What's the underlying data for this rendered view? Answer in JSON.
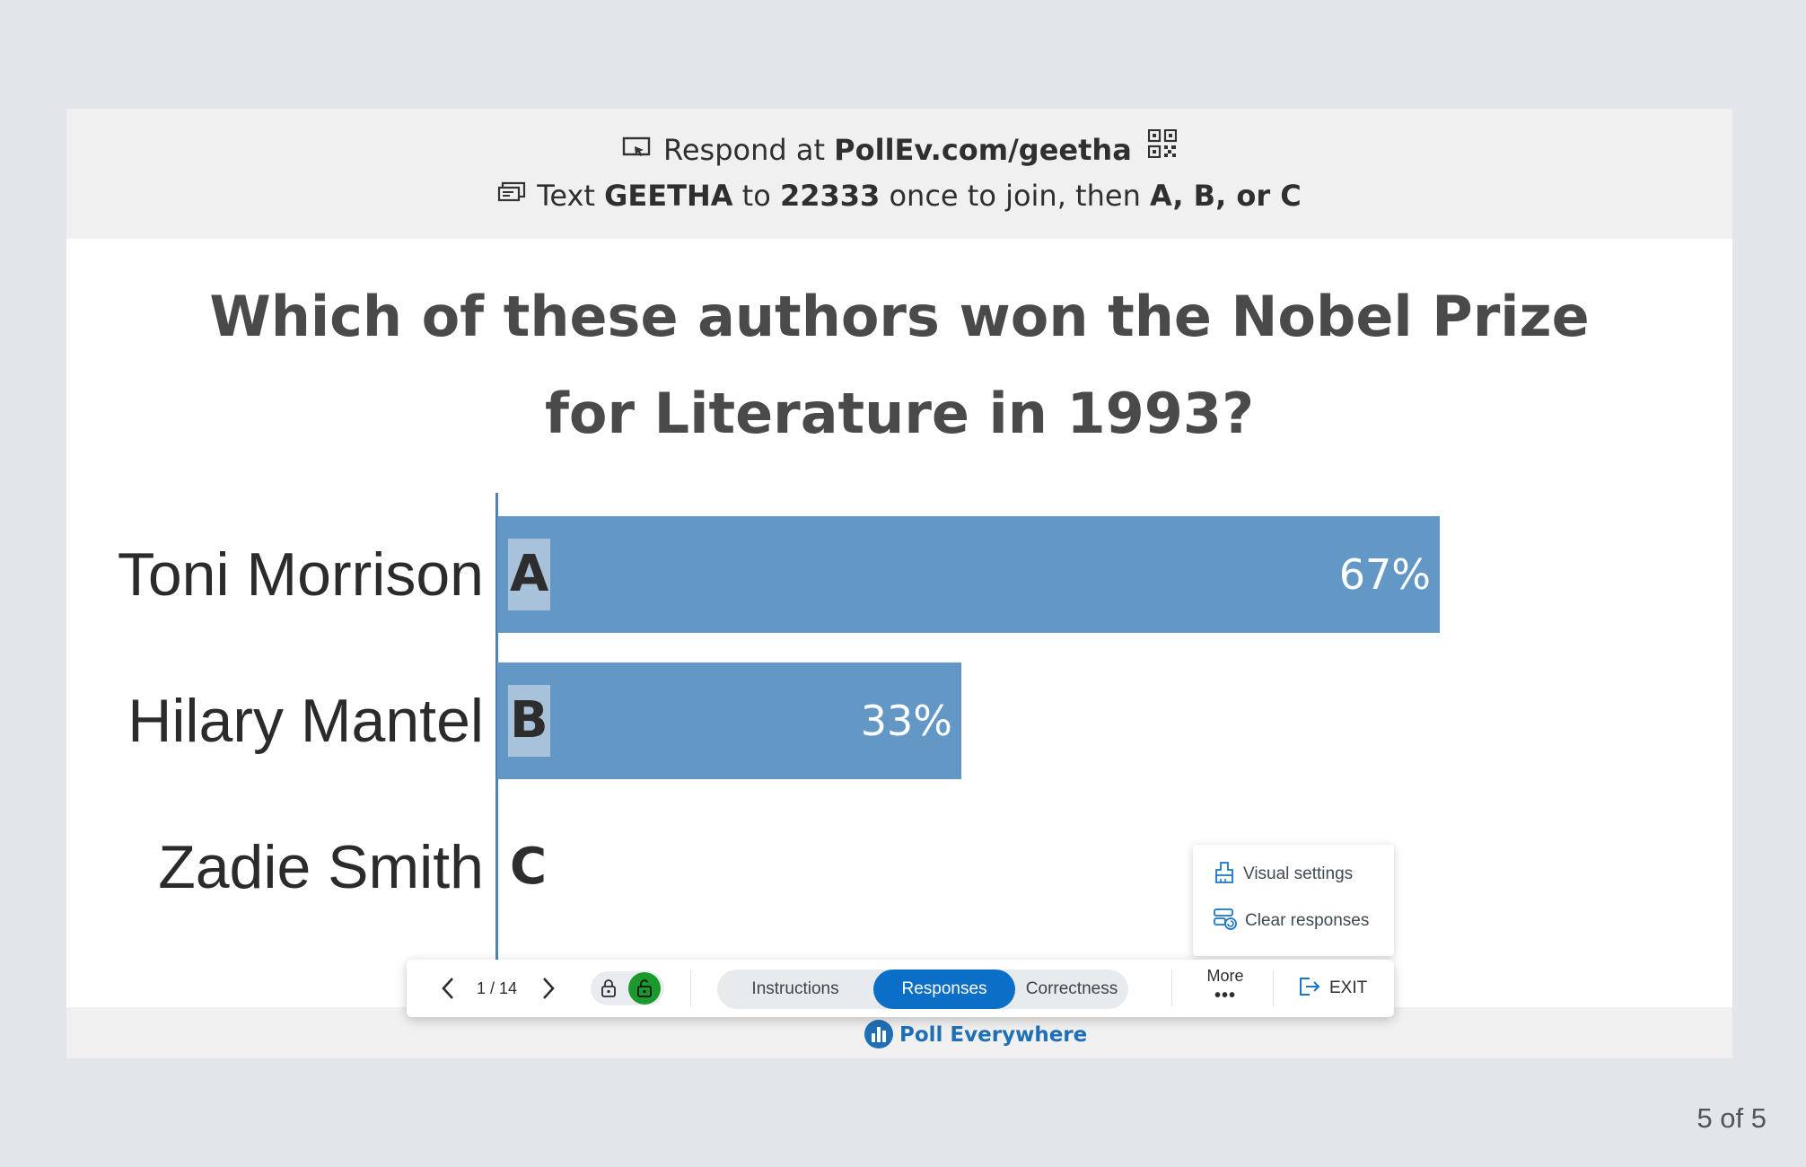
{
  "respond": {
    "prefix": "Respond at",
    "url": "PollEv.com/geetha",
    "text_prefix": "Text",
    "keyword": "GEETHA",
    "to": "to",
    "number": "22333",
    "join_text": "once to join, then",
    "options": "A, B, or C"
  },
  "question": {
    "title": "Which of these authors won the Nobel Prize for Literature in 1993?"
  },
  "chart_data": {
    "type": "bar",
    "orientation": "horizontal",
    "categories": [
      "Toni Morrison",
      "Hilary Mantel",
      "Zadie Smith"
    ],
    "letters": [
      "A",
      "B",
      "C"
    ],
    "values": [
      67,
      33,
      0
    ],
    "value_labels": [
      "67%",
      "33%",
      ""
    ],
    "unit": "%",
    "xlim": [
      0,
      100
    ],
    "grid": false,
    "legend": "none",
    "bar_color": "#6397c6"
  },
  "popup_menu": {
    "visual_settings": "Visual settings",
    "clear_responses": "Clear responses"
  },
  "toolbar": {
    "page": "1 / 14",
    "tabs": [
      "Instructions",
      "Responses",
      "Correctness"
    ],
    "active_tab": "Responses",
    "more_label": "More",
    "more_dots": "•••",
    "exit_label": "EXIT"
  },
  "branding": {
    "name": "Poll Everywhere"
  },
  "slide_counter": "5 of 5",
  "colors": {
    "accent": "#0b6fc7",
    "bar": "#6397c6",
    "lock_active": "#1a9a2c"
  }
}
